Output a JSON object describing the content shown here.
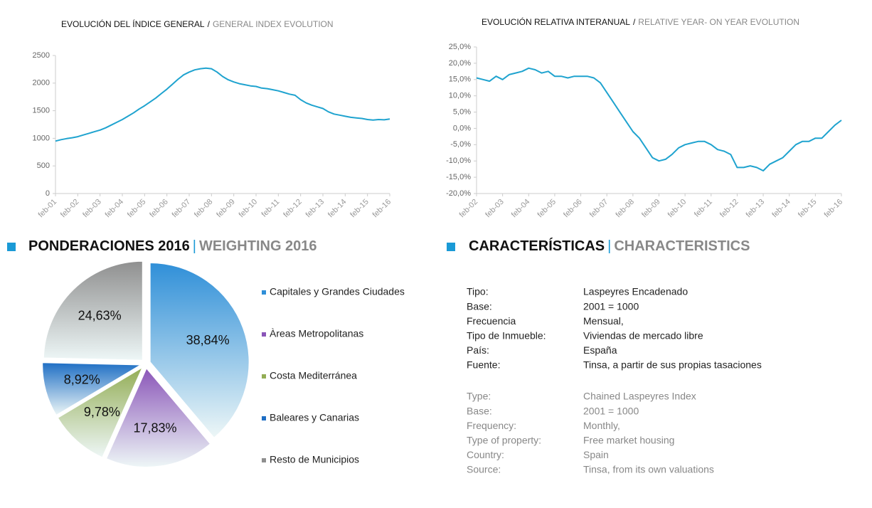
{
  "chart_data": [
    {
      "type": "line",
      "title": [
        "EVOLUCIÓN DEL ÍNDICE GENERAL",
        "/",
        "GENERAL INDEX EVOLUTION"
      ],
      "x": [
        0,
        3,
        6,
        9,
        12,
        15,
        18,
        21,
        24,
        27,
        30,
        33,
        36,
        39,
        42,
        45,
        48,
        51,
        54,
        57,
        60,
        63,
        66,
        69,
        72,
        75,
        78,
        81,
        84,
        87,
        90,
        93,
        96,
        99,
        102,
        105,
        108,
        111,
        114,
        117,
        120,
        123,
        126,
        129,
        132,
        135,
        138,
        141,
        144,
        147,
        150,
        153,
        156,
        159,
        162,
        165,
        168,
        171,
        174,
        177,
        180
      ],
      "series": [
        {
          "name": "General",
          "color": "#1fa3cf",
          "values": [
            950,
            975,
            995,
            1010,
            1030,
            1060,
            1090,
            1120,
            1150,
            1190,
            1240,
            1290,
            1340,
            1400,
            1460,
            1530,
            1590,
            1660,
            1730,
            1810,
            1890,
            1980,
            2070,
            2150,
            2200,
            2240,
            2260,
            2270,
            2260,
            2200,
            2120,
            2060,
            2020,
            1990,
            1970,
            1950,
            1940,
            1910,
            1900,
            1880,
            1860,
            1830,
            1800,
            1780,
            1700,
            1640,
            1600,
            1570,
            1540,
            1480,
            1440,
            1420,
            1400,
            1380,
            1370,
            1360,
            1340,
            1330,
            1340,
            1335,
            1350
          ]
        }
      ],
      "xlim": [
        0,
        180
      ],
      "xticks": [
        {
          "value": 0,
          "label": "feb-01"
        },
        {
          "value": 12,
          "label": "feb-02"
        },
        {
          "value": 24,
          "label": "feb-03"
        },
        {
          "value": 36,
          "label": "feb-04"
        },
        {
          "value": 48,
          "label": "feb-05"
        },
        {
          "value": 60,
          "label": "feb-06"
        },
        {
          "value": 72,
          "label": "feb-07"
        },
        {
          "value": 84,
          "label": "feb-08"
        },
        {
          "value": 96,
          "label": "feb-09"
        },
        {
          "value": 108,
          "label": "feb-10"
        },
        {
          "value": 120,
          "label": "feb-11"
        },
        {
          "value": 132,
          "label": "feb-12"
        },
        {
          "value": 144,
          "label": "feb-13"
        },
        {
          "value": 156,
          "label": "feb-14"
        },
        {
          "value": 168,
          "label": "feb-15"
        },
        {
          "value": 180,
          "label": "feb-16"
        }
      ],
      "ylim": [
        0,
        2500
      ],
      "yticks": [
        0,
        500,
        1000,
        1500,
        2000,
        2500
      ]
    },
    {
      "type": "line",
      "title": [
        "EVOLUCIÓN RELATIVA INTERANUAL",
        "/",
        "RELATIVE YEAR- ON YEAR EVOLUTION"
      ],
      "x": [
        0,
        3,
        6,
        9,
        12,
        15,
        18,
        21,
        24,
        27,
        30,
        33,
        36,
        39,
        42,
        45,
        48,
        51,
        54,
        57,
        60,
        63,
        66,
        69,
        72,
        75,
        78,
        81,
        84,
        87,
        90,
        93,
        96,
        99,
        102,
        105,
        108,
        111,
        114,
        117,
        120,
        123,
        126,
        129,
        132,
        135,
        138,
        141,
        144,
        147,
        150,
        153,
        156,
        159,
        162,
        165,
        168
      ],
      "series": [
        {
          "name": "Interanual",
          "color": "#1fa3cf",
          "values": [
            15.5,
            15,
            14.5,
            16,
            15,
            16.5,
            17,
            17.5,
            18.5,
            18,
            17,
            17.5,
            16,
            16,
            15.5,
            16,
            16,
            16,
            15.5,
            14,
            11,
            8,
            5,
            2,
            -1,
            -3,
            -6,
            -9,
            -10,
            -9.5,
            -8,
            -6,
            -5,
            -4.5,
            -4,
            -4,
            -5,
            -6.5,
            -7,
            -8,
            -12,
            -12,
            -11.5,
            -12,
            -13,
            -11,
            -10,
            -9,
            -7,
            -5,
            -4,
            -4,
            -3,
            -3,
            -1,
            1,
            2.5
          ]
        }
      ],
      "xlim": [
        0,
        168
      ],
      "xticks": [
        {
          "value": 0,
          "label": "feb-02"
        },
        {
          "value": 12,
          "label": "feb-03"
        },
        {
          "value": 24,
          "label": "feb-04"
        },
        {
          "value": 36,
          "label": "feb-05"
        },
        {
          "value": 48,
          "label": "feb-06"
        },
        {
          "value": 60,
          "label": "feb-07"
        },
        {
          "value": 72,
          "label": "feb-08"
        },
        {
          "value": 84,
          "label": "feb-09"
        },
        {
          "value": 96,
          "label": "feb-10"
        },
        {
          "value": 108,
          "label": "feb-11"
        },
        {
          "value": 120,
          "label": "feb-12"
        },
        {
          "value": 132,
          "label": "feb-13"
        },
        {
          "value": 144,
          "label": "feb-14"
        },
        {
          "value": 156,
          "label": "feb-15"
        },
        {
          "value": 168,
          "label": "feb-16"
        }
      ],
      "ylim": [
        -20,
        25
      ],
      "yticks": [
        {
          "value": -20,
          "label": "-20,0%"
        },
        {
          "value": -15,
          "label": "-15,0%"
        },
        {
          "value": -10,
          "label": "-10,0%"
        },
        {
          "value": -5,
          "label": "-5,0%"
        },
        {
          "value": 0,
          "label": "0,0%"
        },
        {
          "value": 5,
          "label": "5,0%"
        },
        {
          "value": 10,
          "label": "10,0%"
        },
        {
          "value": 15,
          "label": "15,0%"
        },
        {
          "value": 20,
          "label": "20,0%"
        },
        {
          "value": 25,
          "label": "25,0%"
        }
      ]
    },
    {
      "type": "pie",
      "title": [
        "PONDERACIONES 2016",
        "|",
        "WEIGHTING 2016"
      ],
      "categories": [
        "Capitales y Grandes Ciudades",
        "Àreas Metropolitanas",
        "Costa Mediterránea",
        "Baleares y Canarias",
        "Resto de Municipios"
      ],
      "values": [
        38.84,
        17.83,
        9.78,
        8.92,
        24.63
      ],
      "value_labels": [
        "38,84%",
        "17,83%",
        "9,78%",
        "8,92%",
        "24,63%"
      ],
      "colors": [
        "#2f8fd8",
        "#8a55b8",
        "#93ad55",
        "#1e6ec4",
        "#8f8f8f"
      ]
    }
  ],
  "characteristics": {
    "title": [
      "CARACTERÍSTICAS",
      "|",
      "CHARACTERISTICS"
    ],
    "es": [
      [
        "Tipo:",
        "Laspeyres Encadenado"
      ],
      [
        "Base:",
        "2001 = 1000"
      ],
      [
        "Frecuencia",
        "Mensual,"
      ],
      [
        "Tipo de Inmueble:",
        "Viviendas de mercado libre"
      ],
      [
        "País:",
        "España"
      ],
      [
        "Fuente:",
        "Tinsa, a partir de sus propias tasaciones"
      ]
    ],
    "en": [
      [
        "Type:",
        "Chained Laspeyres Index"
      ],
      [
        "Base:",
        "2001 = 1000"
      ],
      [
        "Frequency:",
        "Monthly,"
      ],
      [
        "Type of property:",
        "Free market housing"
      ],
      [
        "Country:",
        "Spain"
      ],
      [
        "Source:",
        "Tinsa, from its own valuations"
      ]
    ]
  }
}
